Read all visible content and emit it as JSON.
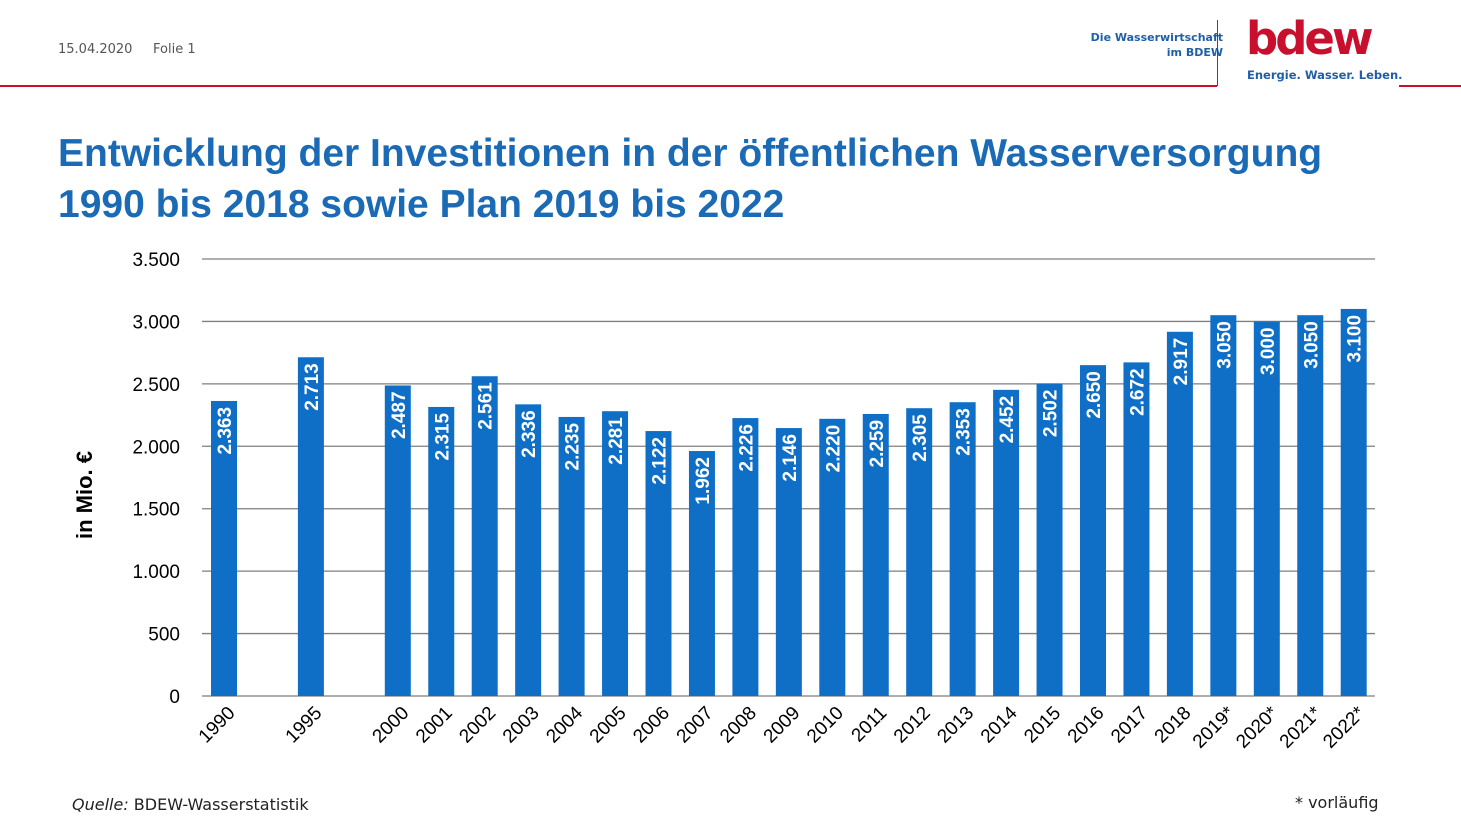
{
  "header": {
    "date": "15.04.2020",
    "slide": "Folie 1",
    "org_line1": "Die Wasserwirtschaft",
    "org_line2": "im BDEW",
    "logo_text": "bdew",
    "tagline": "Energie. Wasser. Leben."
  },
  "title_line1": "Entwicklung der Investitionen in der öffentlichen Wasserversorgung",
  "title_line2": "1990 bis 2018 sowie Plan 2019 bis 2022",
  "footer": {
    "source_label": "Quelle:",
    "source": " BDEW-Wasserstatistik",
    "note": "* vorläufig"
  },
  "colors": {
    "bar": "#0f6fc6",
    "accent_red": "#c8102e",
    "title_blue": "#1a6ab5",
    "grid": "#7f7f7f"
  },
  "chart_data": {
    "type": "bar",
    "categories": [
      "1990",
      "1995",
      "2000",
      "2001",
      "2002",
      "2003",
      "2004",
      "2005",
      "2006",
      "2007",
      "2008",
      "2009",
      "2010",
      "2011",
      "2012",
      "2013",
      "2014",
      "2015",
      "2016",
      "2017",
      "2018",
      "2019*",
      "2020*",
      "2021*",
      "2022*"
    ],
    "values": [
      2363,
      2713,
      2487,
      2315,
      2561,
      2336,
      2235,
      2281,
      2122,
      1962,
      2226,
      2146,
      2220,
      2259,
      2305,
      2353,
      2452,
      2502,
      2650,
      2672,
      2917,
      3050,
      3000,
      3050,
      3100
    ],
    "data_labels": [
      "2.363",
      "2.713",
      "2.487",
      "2.315",
      "2.561",
      "2.336",
      "2.235",
      "2.281",
      "2.122",
      "1.962",
      "2.226",
      "2.146",
      "2.220",
      "2.259",
      "2.305",
      "2.353",
      "2.452",
      "2.502",
      "2.650",
      "2.672",
      "2.917",
      "3.050",
      "3.000",
      "3.050",
      "3.100"
    ],
    "ylabel": "in Mio. €",
    "ylim": [
      0,
      3500
    ],
    "yticks": [
      0,
      500,
      1000,
      1500,
      2000,
      2500,
      3000,
      3500
    ],
    "ytick_labels": [
      "0",
      "500",
      "1.000",
      "1.500",
      "2.000",
      "2.500",
      "3.000",
      "3.500"
    ],
    "grid": true,
    "legend": false
  }
}
